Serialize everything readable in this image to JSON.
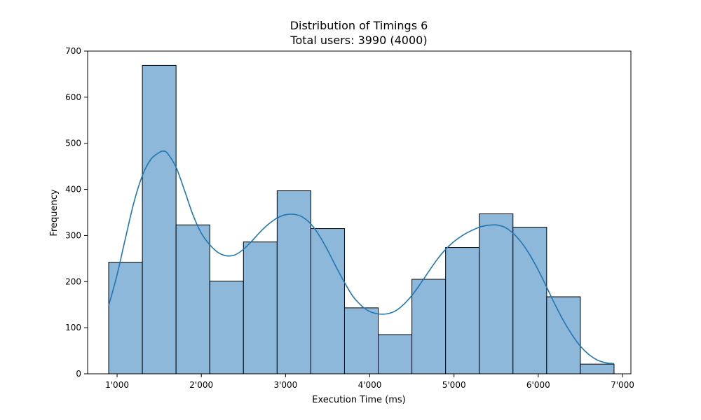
{
  "chart_data": {
    "type": "bar",
    "title": "Distribution of Timings 6",
    "subtitle": "Total users: 3990 (4000)",
    "xlabel": "Execution Time (ms)",
    "ylabel": "Frequency",
    "xlim": [
      650,
      7100
    ],
    "ylim": [
      0,
      700
    ],
    "x_ticks": [
      1000,
      2000,
      3000,
      4000,
      5000,
      6000,
      7000
    ],
    "x_tick_labels": [
      "1'000",
      "2'000",
      "3'000",
      "4'000",
      "5'000",
      "6'000",
      "7'000"
    ],
    "y_ticks": [
      0,
      100,
      200,
      300,
      400,
      500,
      600,
      700
    ],
    "y_tick_labels": [
      "0",
      "100",
      "200",
      "300",
      "400",
      "500",
      "600",
      "700"
    ],
    "grid": false,
    "bins": [
      {
        "start": 900,
        "end": 1300,
        "count": 242
      },
      {
        "start": 1300,
        "end": 1700,
        "count": 669
      },
      {
        "start": 1700,
        "end": 2100,
        "count": 323
      },
      {
        "start": 2100,
        "end": 2500,
        "count": 201
      },
      {
        "start": 2500,
        "end": 2900,
        "count": 286
      },
      {
        "start": 2900,
        "end": 3300,
        "count": 397
      },
      {
        "start": 3300,
        "end": 3700,
        "count": 315
      },
      {
        "start": 3700,
        "end": 4100,
        "count": 143
      },
      {
        "start": 4100,
        "end": 4500,
        "count": 85
      },
      {
        "start": 4500,
        "end": 4900,
        "count": 205
      },
      {
        "start": 4900,
        "end": 5300,
        "count": 274
      },
      {
        "start": 5300,
        "end": 5700,
        "count": 347
      },
      {
        "start": 5700,
        "end": 6100,
        "count": 318
      },
      {
        "start": 6100,
        "end": 6500,
        "count": 167
      },
      {
        "start": 6500,
        "end": 6900,
        "count": 21
      }
    ],
    "kde": {
      "x": [
        900,
        1000,
        1100,
        1200,
        1300,
        1400,
        1500,
        1550,
        1600,
        1700,
        1800,
        1900,
        2000,
        2100,
        2200,
        2300,
        2400,
        2500,
        2600,
        2700,
        2800,
        2900,
        3000,
        3100,
        3200,
        3300,
        3400,
        3500,
        3600,
        3700,
        3800,
        3900,
        4000,
        4100,
        4200,
        4300,
        4400,
        4500,
        4600,
        4700,
        4800,
        4900,
        5000,
        5100,
        5200,
        5300,
        5400,
        5500,
        5600,
        5700,
        5800,
        5900,
        6000,
        6100,
        6200,
        6300,
        6400,
        6500,
        6600,
        6700,
        6800,
        6900
      ],
      "y": [
        148,
        215,
        295,
        372,
        430,
        465,
        480,
        483,
        478,
        448,
        398,
        345,
        305,
        280,
        263,
        256,
        258,
        270,
        288,
        308,
        325,
        338,
        345,
        346,
        340,
        325,
        300,
        268,
        232,
        198,
        168,
        148,
        135,
        130,
        130,
        136,
        150,
        170,
        195,
        222,
        248,
        270,
        287,
        300,
        310,
        318,
        322,
        323,
        318,
        305,
        285,
        258,
        225,
        188,
        150,
        115,
        85,
        60,
        42,
        30,
        24,
        22
      ]
    },
    "colors": {
      "bar_fill": "#8db8d9",
      "bar_edge": "#000000",
      "kde_line": "#1f77b4",
      "axes": "#000000",
      "background": "#ffffff"
    }
  }
}
